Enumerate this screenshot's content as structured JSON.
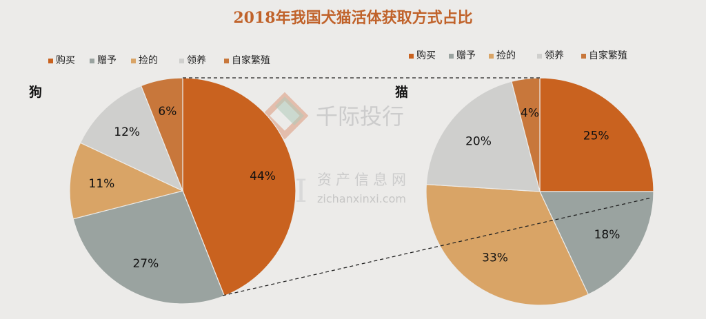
{
  "title": "2018年我国犬猫活体获取方式占比",
  "colors": {
    "title": "#c0622a",
    "购买": "#c9621f",
    "赠予": "#9aa3a0",
    "捡的": "#d9a466",
    "领养": "#cfcfcd",
    "自家繁殖": "#c8773b"
  },
  "chart_data": [
    {
      "type": "pie",
      "label": "狗",
      "categories": [
        "购买",
        "赠予",
        "捡的",
        "领养",
        "自家繁殖"
      ],
      "values": [
        44,
        27,
        11,
        12,
        6
      ],
      "value_labels": [
        "44%",
        "27%",
        "11%",
        "12%",
        "6%"
      ],
      "legend_position": "top"
    },
    {
      "type": "pie",
      "label": "猫",
      "categories": [
        "购买",
        "赠予",
        "捡的",
        "领养",
        "自家繁殖"
      ],
      "values": [
        25,
        18,
        33,
        20,
        4
      ],
      "value_labels": [
        "25%",
        "18%",
        "33%",
        "20%",
        "4%"
      ],
      "legend_position": "top"
    }
  ],
  "watermark": {
    "brand": "千际投行",
    "subtitle": "资产信息网",
    "url": "zichanxinxi.com",
    "logo_letters": "AI"
  }
}
